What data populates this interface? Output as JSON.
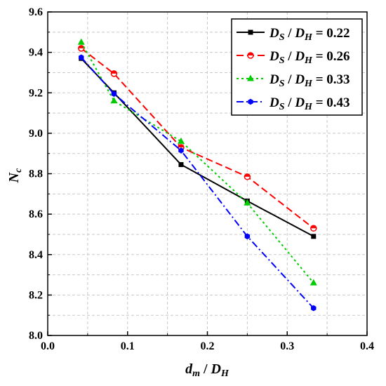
{
  "chart_data": {
    "type": "line",
    "title": "",
    "xlabel": "d_m / D_H",
    "ylabel": "N_c",
    "xlim": [
      0.0,
      0.4
    ],
    "ylim": [
      8.0,
      9.6
    ],
    "x_ticks": [
      "0.0",
      "0.1",
      "0.2",
      "0.3",
      "0.4"
    ],
    "y_ticks": [
      "8.0",
      "8.2",
      "8.4",
      "8.6",
      "8.8",
      "9.0",
      "9.2",
      "9.4",
      "9.6"
    ],
    "grid": true,
    "legend_position": "top-right",
    "series": [
      {
        "name": "D_S / D_H = 0.22",
        "color": "#000000",
        "line_style": "solid",
        "marker": "square",
        "x": [
          0.042,
          0.083,
          0.167,
          0.25,
          0.333
        ],
        "values": [
          9.37,
          9.2,
          8.845,
          8.665,
          8.49
        ]
      },
      {
        "name": "D_S / D_H = 0.26",
        "color": "#ff0000",
        "line_style": "dashed",
        "marker": "circle",
        "x": [
          0.042,
          0.083,
          0.167,
          0.25,
          0.333
        ],
        "values": [
          9.42,
          9.295,
          8.93,
          8.785,
          8.53
        ]
      },
      {
        "name": "D_S / D_H = 0.33",
        "color": "#00cc00",
        "line_style": "dotted",
        "marker": "triangle",
        "x": [
          0.042,
          0.083,
          0.167,
          0.25,
          0.333
        ],
        "values": [
          9.45,
          9.16,
          8.96,
          8.655,
          8.26
        ]
      },
      {
        "name": "D_S / D_H = 0.43",
        "color": "#0000ff",
        "line_style": "dash-dot",
        "marker": "hexagon",
        "x": [
          0.042,
          0.083,
          0.167,
          0.25,
          0.333
        ],
        "values": [
          9.375,
          9.195,
          8.915,
          8.49,
          8.135
        ]
      }
    ]
  }
}
